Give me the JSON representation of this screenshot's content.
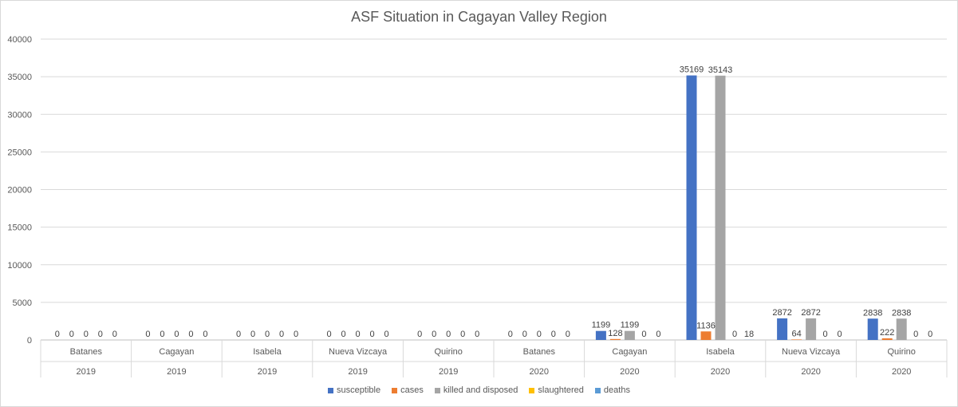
{
  "chart_data": {
    "type": "bar",
    "title": "ASF Situation in Cagayan Valley Region",
    "xlabel": "",
    "ylabel": "",
    "ylim": [
      0,
      40000
    ],
    "yticks": [
      0,
      5000,
      10000,
      15000,
      20000,
      25000,
      30000,
      35000,
      40000
    ],
    "grid": true,
    "legend_position": "bottom",
    "categories": [
      {
        "province": "Batanes",
        "year": "2019"
      },
      {
        "province": "Cagayan",
        "year": "2019"
      },
      {
        "province": "Isabela",
        "year": "2019"
      },
      {
        "province": "Nueva Vizcaya",
        "year": "2019"
      },
      {
        "province": "Quirino",
        "year": "2019"
      },
      {
        "province": "Batanes",
        "year": "2020"
      },
      {
        "province": "Cagayan",
        "year": "2020"
      },
      {
        "province": "Isabela",
        "year": "2020"
      },
      {
        "province": "Nueva Vizcaya",
        "year": "2020"
      },
      {
        "province": "Quirino",
        "year": "2020"
      }
    ],
    "series": [
      {
        "name": "susceptible",
        "color": "#4472c4",
        "values": [
          0,
          0,
          0,
          0,
          0,
          0,
          1199,
          35169,
          2872,
          2838
        ]
      },
      {
        "name": "cases",
        "color": "#ed7d31",
        "values": [
          0,
          0,
          0,
          0,
          0,
          0,
          128,
          1136,
          64,
          222
        ]
      },
      {
        "name": "killed and disposed",
        "color": "#a5a5a5",
        "values": [
          0,
          0,
          0,
          0,
          0,
          0,
          1199,
          35143,
          2872,
          2838
        ]
      },
      {
        "name": "slaughtered",
        "color": "#ffc000",
        "values": [
          0,
          0,
          0,
          0,
          0,
          0,
          0,
          0,
          0,
          0
        ]
      },
      {
        "name": "deaths",
        "color": "#5b9bd5",
        "values": [
          0,
          0,
          0,
          0,
          0,
          0,
          0,
          18,
          0,
          0
        ]
      }
    ]
  }
}
